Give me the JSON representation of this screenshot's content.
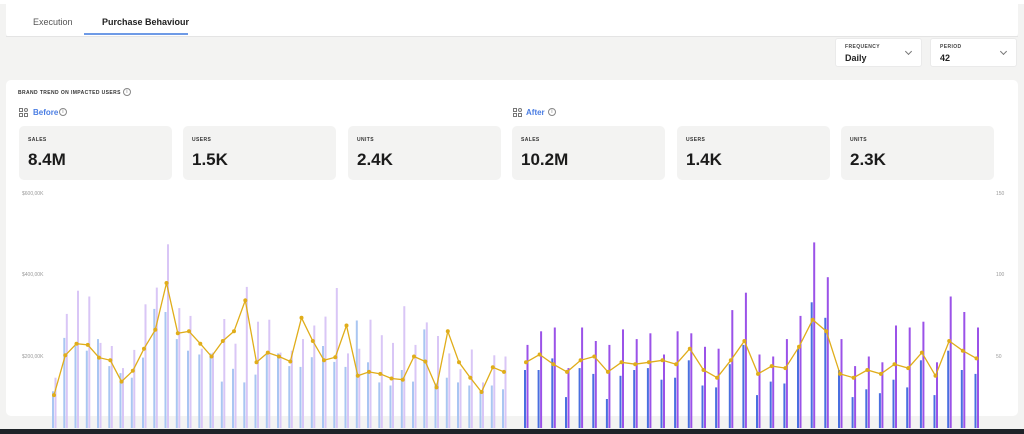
{
  "tabs": [
    {
      "label": "Execution",
      "active": false
    },
    {
      "label": "Purchase Behaviour",
      "active": true
    }
  ],
  "filters": {
    "frequency": {
      "label": "FREQUENCY",
      "value": "Daily"
    },
    "period": {
      "label": "PERIOD",
      "value": "42"
    }
  },
  "section": {
    "title": "BRAND TREND ON IMPACTED USERS"
  },
  "groups": {
    "before": {
      "label": "Before",
      "kpis": [
        {
          "label": "SALES",
          "value": "8.4M"
        },
        {
          "label": "USERS",
          "value": "1.5K"
        },
        {
          "label": "UNITS",
          "value": "2.4K"
        }
      ]
    },
    "after": {
      "label": "After",
      "kpis": [
        {
          "label": "SALES",
          "value": "10.2M"
        },
        {
          "label": "USERS",
          "value": "1.4K"
        },
        {
          "label": "UNITS",
          "value": "2.3K"
        }
      ]
    }
  },
  "axes": {
    "left_ticks": [
      "$600,00K",
      "$400,00K",
      "$200,00K"
    ],
    "right_ticks": [
      "150",
      "100",
      "50"
    ]
  },
  "colors": {
    "accent": "#4a7de3",
    "before_bar_a": "#a9c6f2",
    "before_bar_b": "#d9c6f6",
    "after_bar_a": "#4a6fe0",
    "after_bar_b": "#9b52e8",
    "line": "#e0ad1a"
  },
  "chart_data": [
    {
      "type": "bar",
      "name": "before",
      "ylim": [
        0,
        600000
      ],
      "series": [
        {
          "values": [
            95000,
            233000,
            212000,
            200000,
            230000,
            160000,
            142000,
            130000,
            182000,
            308000,
            300000,
            230000,
            200000,
            190000,
            193000,
            120000,
            153000,
            118000,
            138000,
            193000,
            193000,
            160000,
            158000,
            183000,
            212000,
            171000,
            158000,
            278000,
            170000,
            118000,
            110000,
            150000,
            120000,
            255000,
            115000,
            130000,
            118000,
            110000,
            93000,
            110000,
            100000
          ]
        },
        {
          "values": [
            130000,
            295000,
            355000,
            340000,
            220000,
            212000,
            155000,
            202000,
            320000,
            363000,
            475000,
            310000,
            290000,
            205000,
            195000,
            282000,
            218000,
            365000,
            275000,
            280000,
            195000,
            200000,
            230000,
            265000,
            288000,
            362000,
            193000,
            205000,
            280000,
            240000,
            220000,
            315000,
            215000,
            273000,
            238000,
            193000,
            152000,
            203000,
            118000,
            188000,
            185000
          ]
        },
        {
          "values": [
            85000,
            188000,
            218000,
            215000,
            182000,
            175000,
            120000,
            148000,
            205000,
            254000,
            375000,
            245000,
            250000,
            218000,
            185000,
            225000,
            250000,
            330000,
            170000,
            195000,
            185000,
            172000,
            285000,
            225000,
            175000,
            183000,
            265000,
            135000,
            145000,
            140000,
            128000,
            125000,
            185000,
            172000,
            105000,
            250000,
            170000,
            130000,
            93000,
            157000,
            145000
          ]
        }
      ]
    },
    {
      "type": "bar",
      "name": "after",
      "ylim": [
        0,
        600000
      ],
      "series": [
        {
          "values": [
            150000,
            150000,
            180000,
            80000,
            155000,
            140000,
            75000,
            135000,
            150000,
            155000,
            125000,
            130000,
            175000,
            110000,
            105000,
            165000,
            215000,
            85000,
            120000,
            115000,
            205000,
            325000,
            285000,
            150000,
            80000,
            100000,
            90000,
            125000,
            105000,
            175000,
            85000,
            200000,
            150000,
            140000
          ]
        },
        {
          "values": [
            215000,
            250000,
            260000,
            155000,
            260000,
            225000,
            215000,
            255000,
            230000,
            245000,
            190000,
            250000,
            245000,
            210000,
            205000,
            305000,
            350000,
            190000,
            185000,
            230000,
            290000,
            480000,
            390000,
            230000,
            160000,
            185000,
            170000,
            265000,
            260000,
            275000,
            170000,
            340000,
            300000,
            260000
          ]
        },
        {
          "values": [
            170000,
            190000,
            165000,
            145000,
            175000,
            185000,
            145000,
            170000,
            165000,
            170000,
            175000,
            165000,
            205000,
            150000,
            130000,
            175000,
            225000,
            140000,
            160000,
            155000,
            210000,
            280000,
            250000,
            140000,
            130000,
            150000,
            140000,
            165000,
            155000,
            195000,
            135000,
            225000,
            200000,
            180000
          ]
        }
      ]
    }
  ]
}
